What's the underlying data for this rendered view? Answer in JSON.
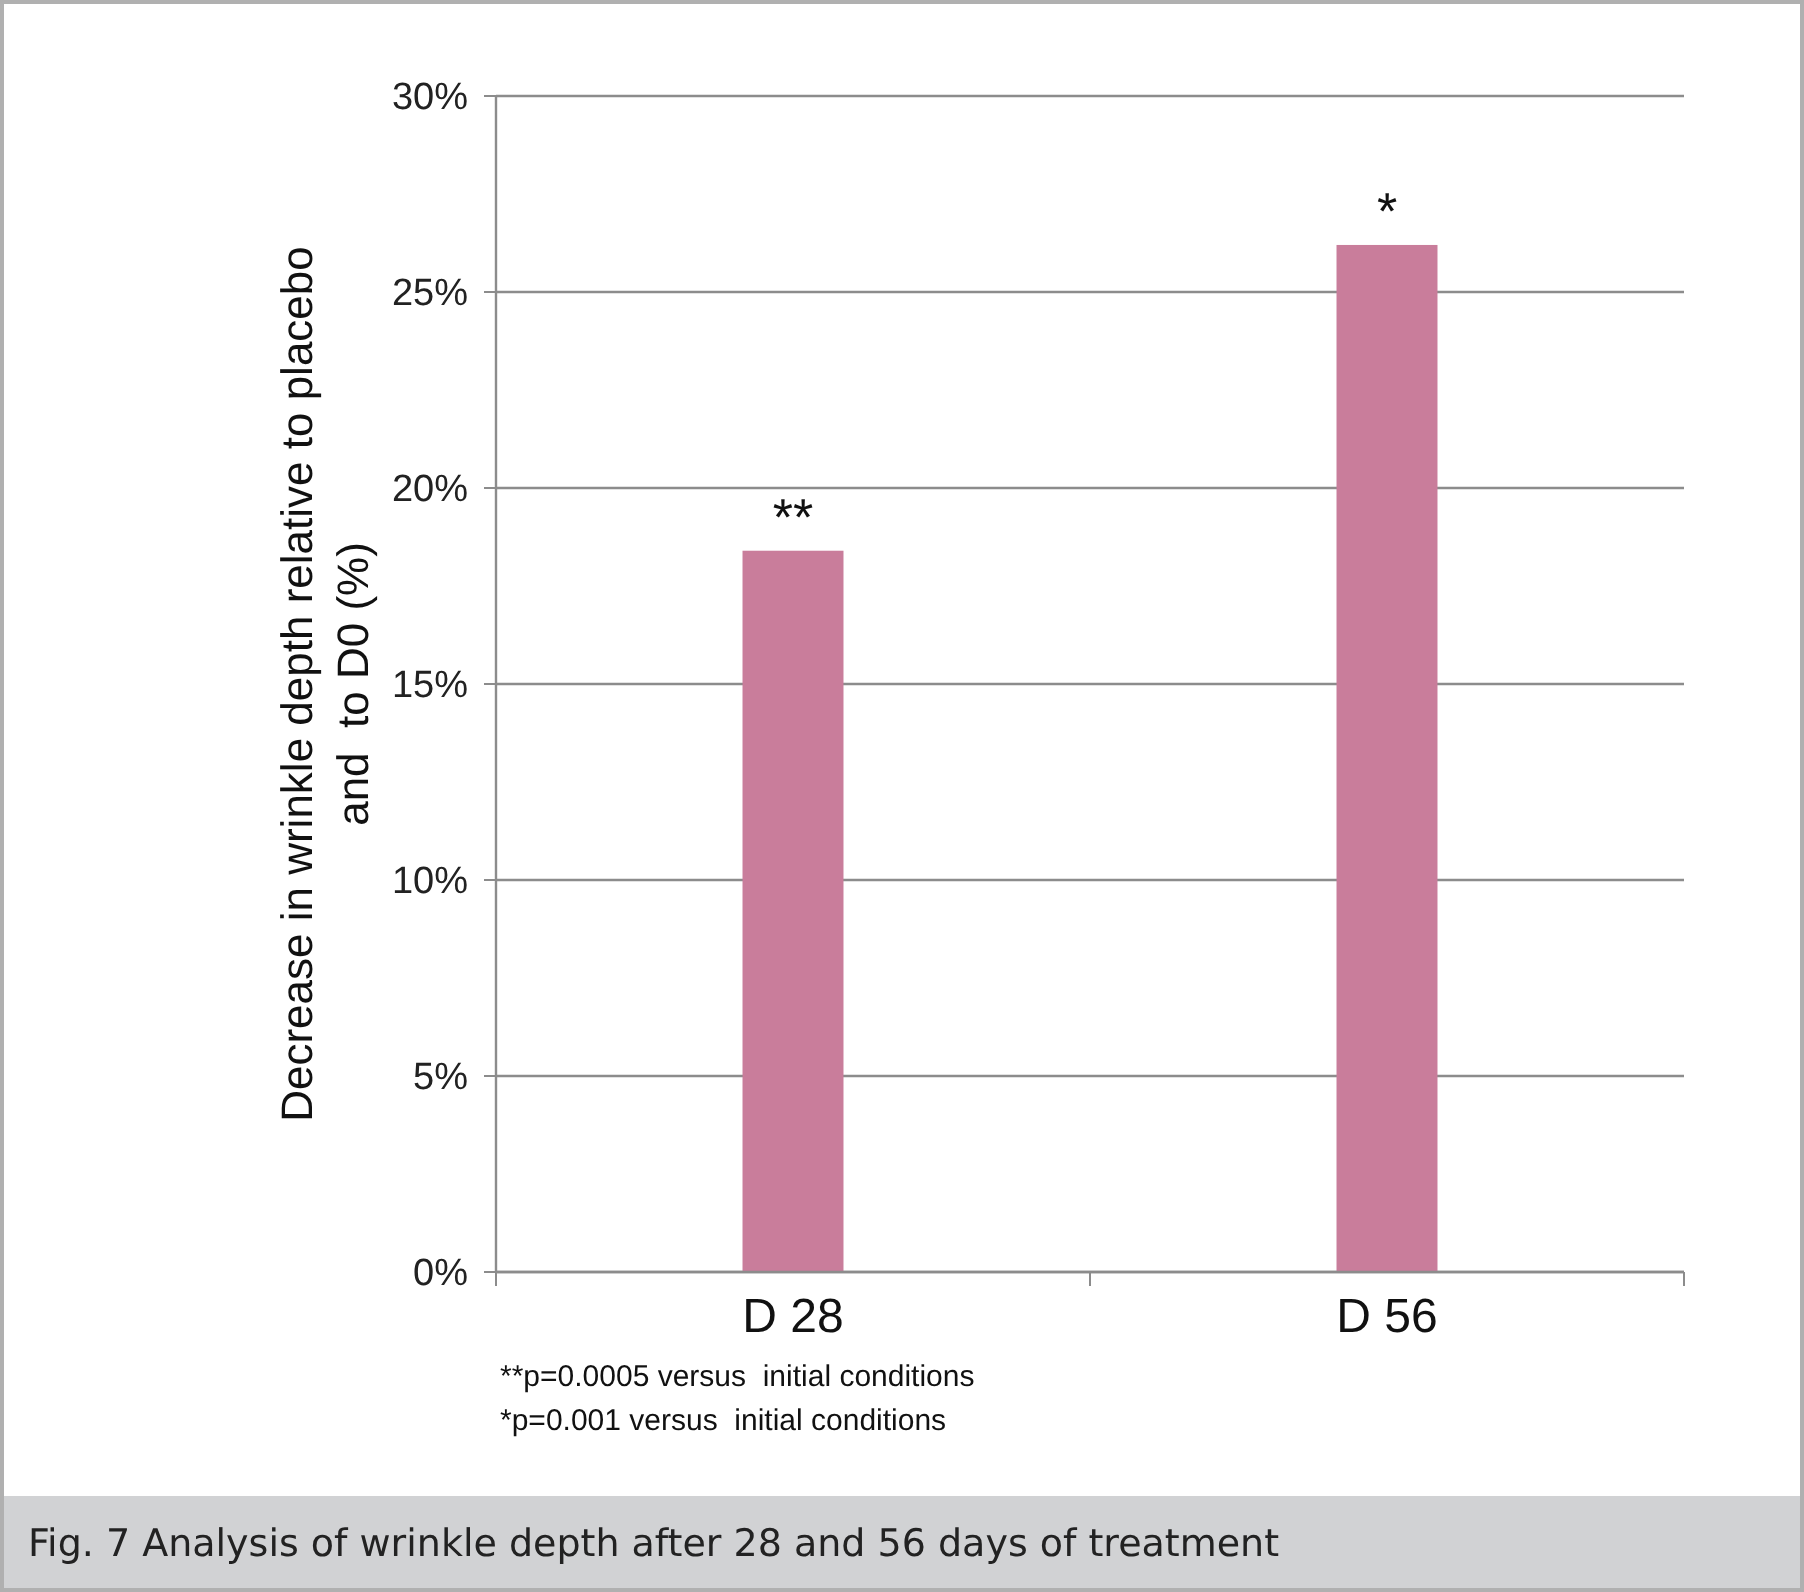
{
  "chart_data": {
    "type": "bar",
    "title": "Fig. 7 Analysis of wrinkle depth after 28 and 56 days of treatment",
    "ylabel": "Decrease in wrinkle depth relative to placebo\nand  to D0 (%)",
    "categories": [
      "D 28",
      "D 56"
    ],
    "values": [
      18.4,
      26.2
    ],
    "color": "#c97d9b",
    "ylim": [
      0,
      30
    ],
    "yticks": [
      {
        "value": 0,
        "label": "0%"
      },
      {
        "value": 5,
        "label": "5%"
      },
      {
        "value": 10,
        "label": "10%"
      },
      {
        "value": 15,
        "label": "15%"
      },
      {
        "value": 20,
        "label": "20%"
      },
      {
        "value": 25,
        "label": "25%"
      },
      {
        "value": 30,
        "label": "30%"
      }
    ],
    "grid": "y",
    "annotations": [
      {
        "text": "**",
        "x": "D 28",
        "y": 18.4
      },
      {
        "text": "*",
        "x": "D 56",
        "y": 26.2
      },
      "**p=0.0005 versus  initial conditions",
      "*p=0.001 versus  initial conditions"
    ]
  }
}
